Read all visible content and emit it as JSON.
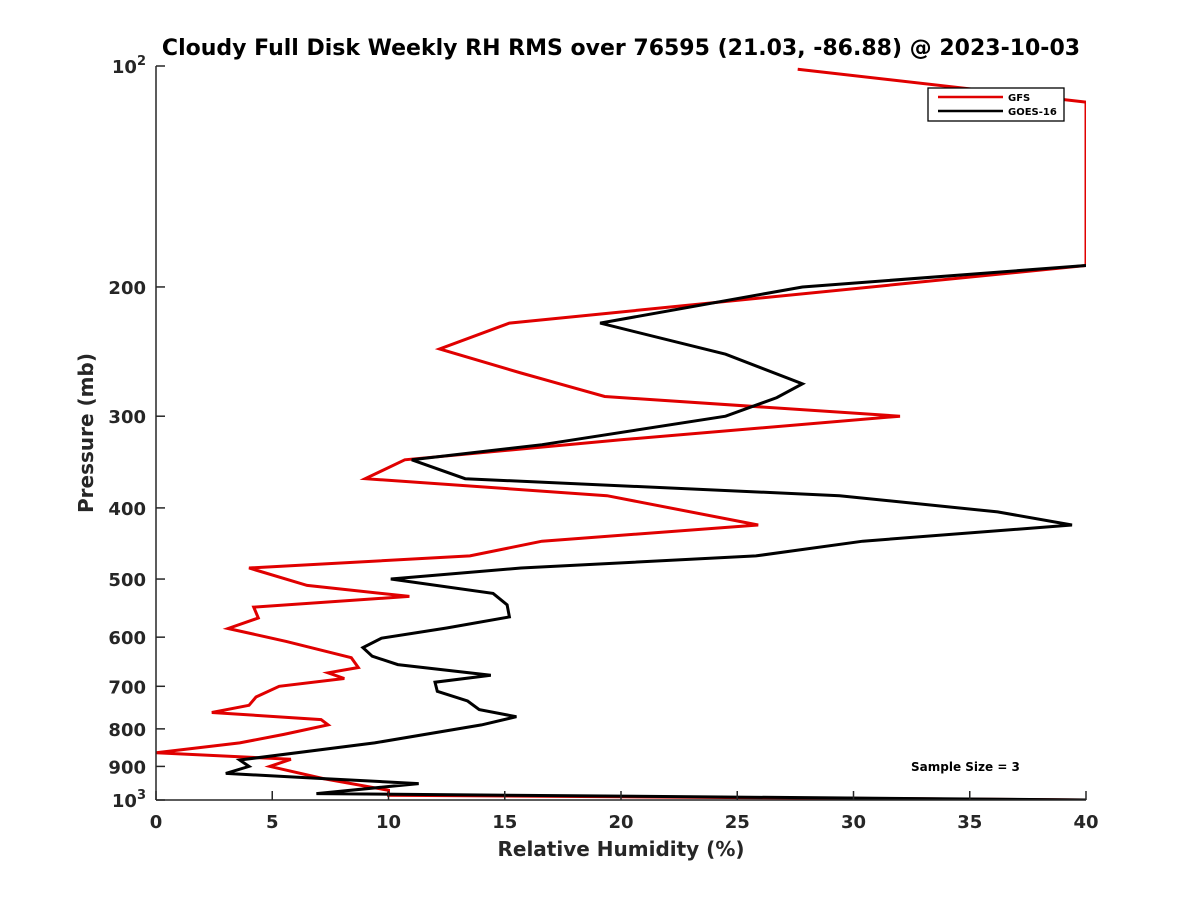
{
  "chart_data": {
    "type": "line",
    "title": "Cloudy Full Disk Weekly RH RMS over 76595 (21.03, -86.88) @ 2023-10-03",
    "xlabel": "Relative Humidity (%)",
    "ylabel": "Pressure (mb)",
    "xlim": [
      0,
      40
    ],
    "ylim": [
      100,
      1000
    ],
    "yscale": "log",
    "y_reversed": true,
    "xticks": [
      "0",
      "5",
      "10",
      "15",
      "20",
      "25",
      "30",
      "35",
      "40"
    ],
    "yticks": [
      {
        "value": 200,
        "label": "200"
      },
      {
        "value": 300,
        "label": "300"
      },
      {
        "value": 400,
        "label": "400"
      },
      {
        "value": 500,
        "label": "500"
      },
      {
        "value": 600,
        "label": "600"
      },
      {
        "value": 700,
        "label": "700"
      },
      {
        "value": 800,
        "label": "800"
      },
      {
        "value": 900,
        "label": "900"
      }
    ],
    "ytick_endpoints": [
      {
        "value": 100,
        "base": "10",
        "exp": "2"
      },
      {
        "value": 1000,
        "base": "10",
        "exp": "3"
      }
    ],
    "legend": {
      "position": "top-right",
      "entries": [
        "GFS",
        "GOES-16"
      ]
    },
    "annotation": "Sample Size = 3",
    "series": [
      {
        "name": "GFS",
        "color": "#e00000",
        "x": [
          27.6,
          40,
          40,
          15.2,
          12.2,
          15.7,
          19.3,
          32.0,
          20.0,
          10.7,
          9.0,
          19.4,
          25.9,
          16.6,
          13.5,
          4.0,
          6.5,
          10.9,
          4.2,
          4.4,
          3.1,
          5.6,
          8.4,
          8.7,
          7.4,
          8.1,
          5.3,
          4.3,
          4.0,
          2.4,
          7.1,
          7.4,
          5.5,
          3.6,
          0.0,
          5.8,
          4.9,
          7.2,
          10.0,
          10.0,
          40
        ],
        "y": [
          101,
          112,
          187,
          224,
          243,
          262,
          282,
          300,
          323,
          344,
          365,
          385,
          422,
          444,
          465,
          483,
          510,
          528,
          546,
          565,
          584,
          608,
          640,
          660,
          671,
          683,
          700,
          724,
          743,
          760,
          777,
          790,
          814,
          836,
          862,
          880,
          900,
          935,
          970,
          985,
          1000
        ]
      },
      {
        "name": "GOES-16",
        "color": "#000000",
        "x": [
          40,
          27.8,
          19.1,
          24.5,
          27.8,
          26.7,
          24.5,
          16.6,
          11.0,
          13.3,
          29.4,
          36.2,
          39.4,
          30.4,
          25.8,
          15.7,
          10.1,
          14.5,
          15.1,
          15.2,
          12.5,
          9.7,
          8.9,
          9.3,
          10.4,
          14.4,
          12.0,
          12.1,
          13.4,
          13.9,
          15.5,
          14.0,
          9.4,
          3.6,
          4.0,
          3.0,
          6.9,
          11.3,
          6.9,
          40
        ],
        "y": [
          187,
          200,
          224,
          247,
          271,
          283,
          300,
          328,
          344,
          365,
          385,
          405,
          422,
          444,
          465,
          483,
          500,
          523,
          542,
          563,
          583,
          602,
          620,
          637,
          654,
          676,
          691,
          711,
          733,
          753,
          770,
          790,
          836,
          882,
          900,
          920,
          934,
          950,
          980,
          1000
        ]
      }
    ]
  }
}
